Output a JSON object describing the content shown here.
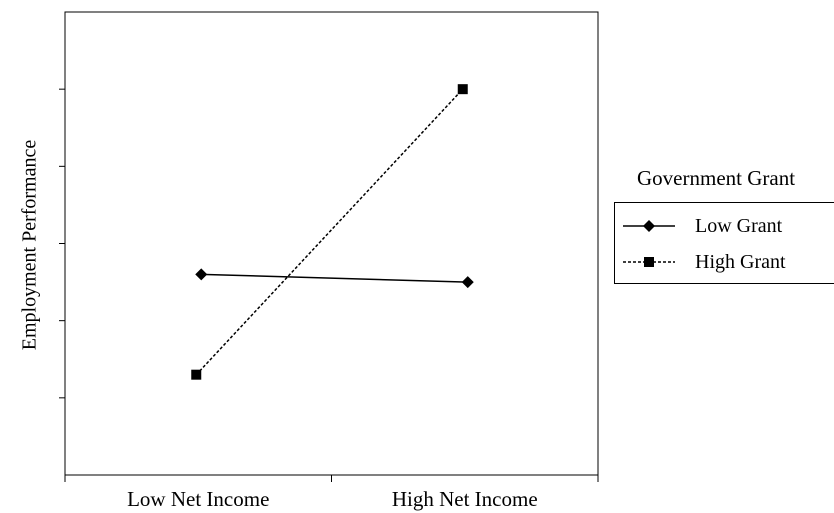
{
  "chart_data": {
    "type": "line",
    "title": "",
    "xlabel": "",
    "ylabel": "Employment Performance",
    "categories": [
      "Low Net Income",
      "High Net Income"
    ],
    "ylim": [
      0,
      6
    ],
    "ytick_count": 6,
    "grid": false,
    "legend": {
      "title": "Government Grant",
      "position": "right"
    },
    "series": [
      {
        "name": "Low Grant",
        "values": [
          2.6,
          2.5
        ],
        "marker": "diamond",
        "line_style": "solid",
        "color": "#000000"
      },
      {
        "name": "High Grant",
        "values": [
          1.3,
          5.0
        ],
        "marker": "square",
        "line_style": "dashed",
        "color": "#000000"
      }
    ]
  }
}
